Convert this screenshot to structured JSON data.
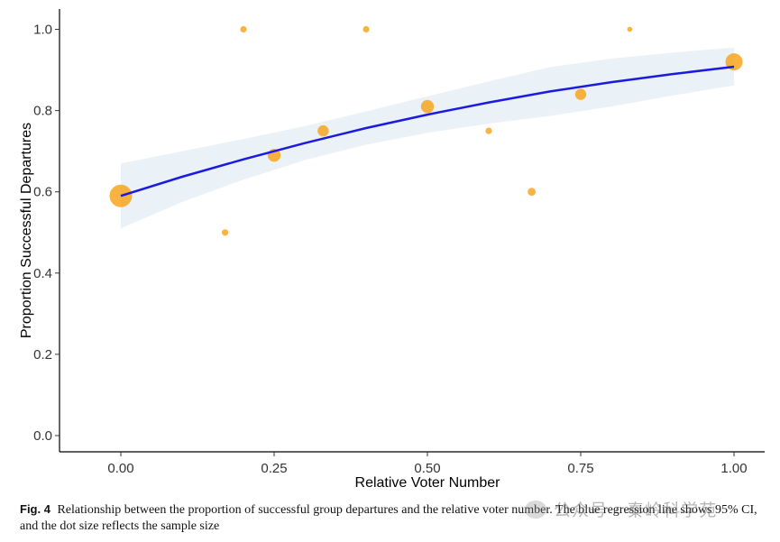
{
  "chart_data": {
    "type": "scatter",
    "xlabel": "Relative Voter Number",
    "ylabel": "Proportion Successful Departures",
    "xlim": [
      -0.1,
      1.05
    ],
    "ylim": [
      -0.04,
      1.05
    ],
    "xticks": [
      0,
      0.25,
      0.5,
      0.75,
      1
    ],
    "xtick_labels": [
      "0.00",
      "0.25",
      "0.50",
      "0.75",
      "1.00"
    ],
    "yticks": [
      0,
      0.2,
      0.4,
      0.6,
      0.8,
      1
    ],
    "ytick_labels": [
      "0.0",
      "0.2",
      "0.4",
      "0.6",
      "0.8",
      "1.0"
    ],
    "grid": false,
    "legend": "none",
    "points": [
      {
        "x": 0.0,
        "y": 0.59,
        "size": 12
      },
      {
        "x": 0.17,
        "y": 0.5,
        "size": 1
      },
      {
        "x": 0.2,
        "y": 1.0,
        "size": 1
      },
      {
        "x": 0.25,
        "y": 0.69,
        "size": 4
      },
      {
        "x": 0.33,
        "y": 0.75,
        "size": 3
      },
      {
        "x": 0.4,
        "y": 1.0,
        "size": 1
      },
      {
        "x": 0.5,
        "y": 0.81,
        "size": 4
      },
      {
        "x": 0.6,
        "y": 0.75,
        "size": 1
      },
      {
        "x": 0.67,
        "y": 0.6,
        "size": 1.5
      },
      {
        "x": 0.75,
        "y": 0.84,
        "size": 3
      },
      {
        "x": 0.83,
        "y": 1.0,
        "size": 0.6
      },
      {
        "x": 1.0,
        "y": 0.92,
        "size": 7
      }
    ],
    "regression_line": {
      "x": [
        0,
        0.1,
        0.2,
        0.3,
        0.4,
        0.5,
        0.6,
        0.7,
        0.8,
        0.9,
        1.0
      ],
      "y": [
        0.59,
        0.637,
        0.68,
        0.72,
        0.757,
        0.79,
        0.82,
        0.847,
        0.87,
        0.89,
        0.908
      ],
      "ci_lower": [
        0.51,
        0.575,
        0.63,
        0.678,
        0.716,
        0.745,
        0.768,
        0.787,
        0.81,
        0.837,
        0.862
      ],
      "ci_upper": [
        0.67,
        0.7,
        0.73,
        0.762,
        0.798,
        0.835,
        0.872,
        0.907,
        0.928,
        0.943,
        0.955
      ]
    },
    "colors": {
      "points": "#f7a620",
      "line": "#1a1ae0",
      "band": "#e3eef6",
      "axis": "#333333"
    }
  },
  "caption": {
    "label": "Fig. 4",
    "text": "Relationship between the proportion of successful group departures and the relative voter number. The blue regression line shows 95% CI, and the dot size reflects the sample size"
  },
  "watermark": {
    "text": "公众号 · 秦岭科学苑"
  }
}
